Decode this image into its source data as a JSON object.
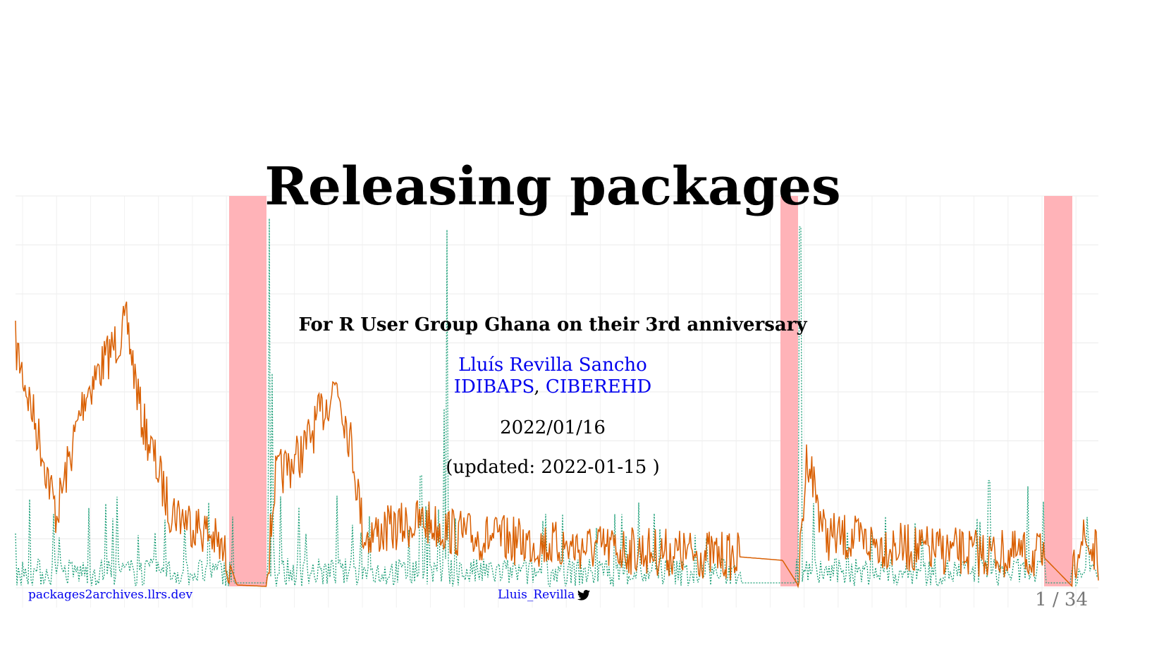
{
  "slide": {
    "title": "Releasing packages",
    "subtitle": "For R User Group Ghana on their 3rd anniversary",
    "author_name": "Lluís Revilla Sancho",
    "affiliation_1": "IDIBAPS",
    "affiliation_sep": ",",
    "affiliation_2": "CIBEREHD",
    "date": "2022/01/16",
    "updated": "(updated: 2022-01-15 )"
  },
  "footer": {
    "left_link": "packages2archives.llrs.dev",
    "twitter_handle": "Lluis_Revilla",
    "twitter_icon": "twitter-icon",
    "slide_counter": "1 / 34"
  },
  "colors": {
    "link": "#0000ee",
    "orange_series": "#d95f02",
    "green_series": "#1b9e77",
    "highlight_band": "#ffb3b8",
    "gridline": "#ebebeb"
  }
}
